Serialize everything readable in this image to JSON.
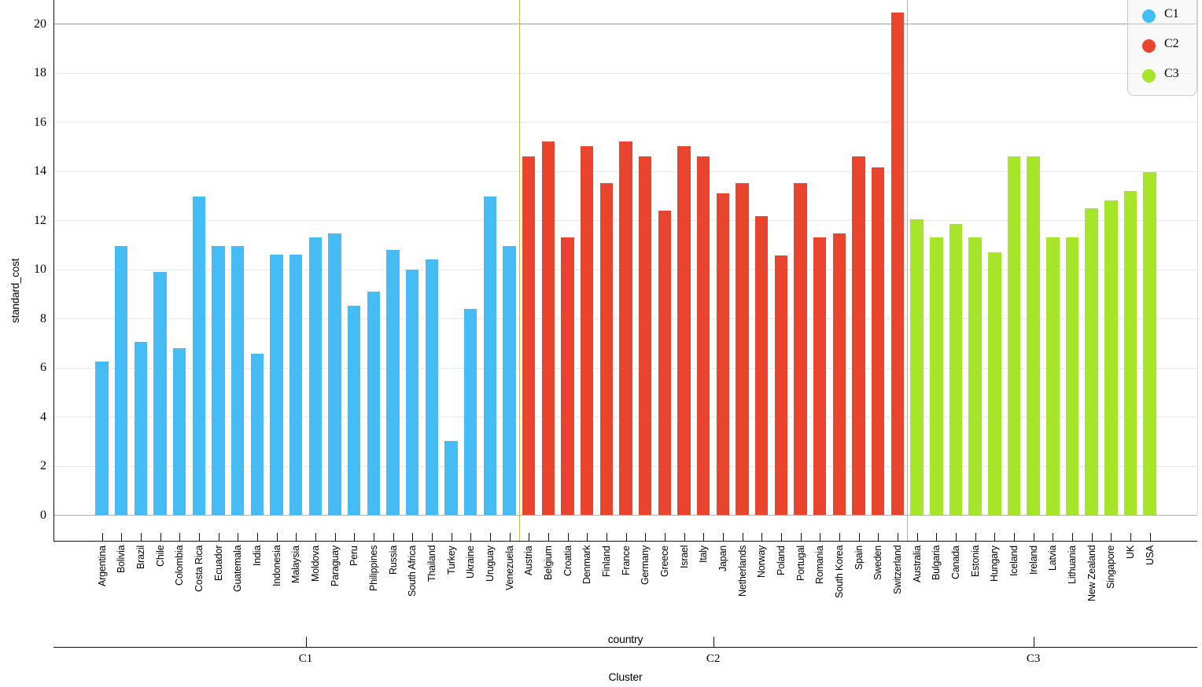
{
  "chart_data": {
    "type": "bar",
    "title": "",
    "xlabel": "country",
    "ylabel": "standard_cost",
    "group_axis_title": "Cluster",
    "ylim": [
      0,
      21
    ],
    "yticks": [
      0,
      2,
      4,
      6,
      8,
      10,
      12,
      14,
      16,
      18,
      20
    ],
    "grid": true,
    "legend_position": "top-right",
    "clusters": [
      {
        "name": "C1",
        "color": "#45bdf4",
        "categories": [
          "Argentina",
          "Bolivia",
          "Brazil",
          "Chile",
          "Colombia",
          "Costa Rica",
          "Ecuador",
          "Guatemala",
          "India",
          "Indonesia",
          "Malaysia",
          "Moldova",
          "Paraguay",
          "Peru",
          "Philippines",
          "Russia",
          "South Africa",
          "Thailand",
          "Turkey",
          "Ukraine",
          "Uruguay",
          "Venezuela"
        ],
        "values": [
          6.25,
          10.95,
          7.05,
          9.9,
          6.8,
          12.95,
          10.95,
          10.95,
          6.55,
          10.6,
          10.6,
          11.3,
          11.45,
          8.5,
          9.1,
          10.8,
          10.0,
          10.4,
          3.0,
          8.4,
          12.95,
          10.95
        ]
      },
      {
        "name": "C2",
        "color": "#e9442e",
        "categories": [
          "Austria",
          "Belgium",
          "Croatia",
          "Denmark",
          "Finland",
          "France",
          "Germany",
          "Greece",
          "Israel",
          "Italy",
          "Japan",
          "Netherlands",
          "Norway",
          "Poland",
          "Portugal",
          "Romania",
          "South Korea",
          "Spain",
          "Sweden",
          "Switzerland"
        ],
        "values": [
          14.6,
          15.2,
          11.3,
          15.0,
          13.5,
          15.2,
          14.6,
          12.4,
          15.0,
          14.6,
          13.1,
          13.5,
          12.15,
          10.55,
          13.5,
          11.3,
          11.45,
          14.6,
          14.15,
          20.45
        ]
      },
      {
        "name": "C3",
        "color": "#a7e52a",
        "categories": [
          "Australia",
          "Bulgaria",
          "Canada",
          "Estonia",
          "Hungary",
          "Iceland",
          "Ireland",
          "Latvia",
          "Lithuania",
          "New Zealand",
          "Singapore",
          "UK",
          "USA"
        ],
        "values": [
          12.05,
          11.3,
          11.85,
          11.3,
          10.7,
          14.6,
          14.6,
          11.3,
          11.3,
          12.5,
          12.8,
          13.2,
          13.95
        ]
      }
    ]
  },
  "legend": {
    "entries": [
      {
        "label": "C1",
        "color": "#45bdf4"
      },
      {
        "label": "C2",
        "color": "#e9442e"
      },
      {
        "label": "C3",
        "color": "#a7e52a"
      }
    ]
  },
  "styles": {
    "separator_color": "#c0c050",
    "baseline_color": "#b0b0b0",
    "gridline_color": "#e9e9e9",
    "top_gridline_color": "#9b9b9b",
    "right_border_color": "#d9d9d9",
    "axis_color": "#111111"
  }
}
